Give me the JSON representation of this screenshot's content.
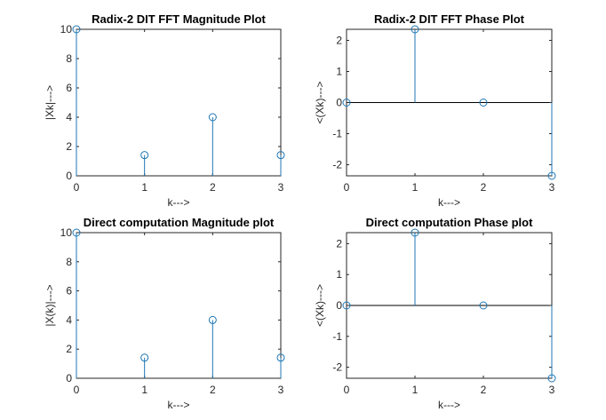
{
  "colors": {
    "stem": "#1f77b4",
    "axis": "#262626",
    "baseline": "#000000",
    "background": "#ffffff"
  },
  "chart_data": [
    {
      "type": "stem",
      "title": "Radix-2 DIT FFT Magnitude Plot",
      "xlabel": "k--->",
      "ylabel": "|Xk|--->",
      "x": [
        0,
        1,
        2,
        3
      ],
      "y": [
        10,
        1.414,
        4,
        1.414
      ],
      "xlim": [
        0,
        3
      ],
      "ylim": [
        0,
        10
      ],
      "xticks": [
        0,
        1,
        2,
        3
      ],
      "yticks": [
        0,
        2,
        4,
        6,
        8,
        10
      ],
      "grid": false
    },
    {
      "type": "stem",
      "title": "Radix-2 DIT FFT Phase Plot",
      "xlabel": "k--->",
      "ylabel": "<(Xk)--->",
      "x": [
        0,
        1,
        2,
        3
      ],
      "y": [
        0,
        2.356,
        0,
        -2.356
      ],
      "xlim": [
        0,
        3
      ],
      "ylim": [
        -2.356,
        2.356
      ],
      "xticks": [
        0,
        1,
        2,
        3
      ],
      "yticks": [
        -2,
        -1,
        0,
        1,
        2
      ],
      "grid": false
    },
    {
      "type": "stem",
      "title": "Direct computation Magnitude plot",
      "xlabel": "k--->",
      "ylabel": "|X(k)|--->",
      "x": [
        0,
        1,
        2,
        3
      ],
      "y": [
        10,
        1.414,
        4,
        1.414
      ],
      "xlim": [
        0,
        3
      ],
      "ylim": [
        0,
        10
      ],
      "xticks": [
        0,
        1,
        2,
        3
      ],
      "yticks": [
        0,
        2,
        4,
        6,
        8,
        10
      ],
      "grid": false
    },
    {
      "type": "stem",
      "title": "Direct computation Phase plot",
      "xlabel": "k--->",
      "ylabel": "<(Xk)--->",
      "x": [
        0,
        1,
        2,
        3
      ],
      "y": [
        0,
        2.356,
        0,
        -2.356
      ],
      "xlim": [
        0,
        3
      ],
      "ylim": [
        -2.356,
        2.356
      ],
      "xticks": [
        0,
        1,
        2,
        3
      ],
      "yticks": [
        -2,
        -1,
        0,
        1,
        2
      ],
      "grid": false
    }
  ]
}
